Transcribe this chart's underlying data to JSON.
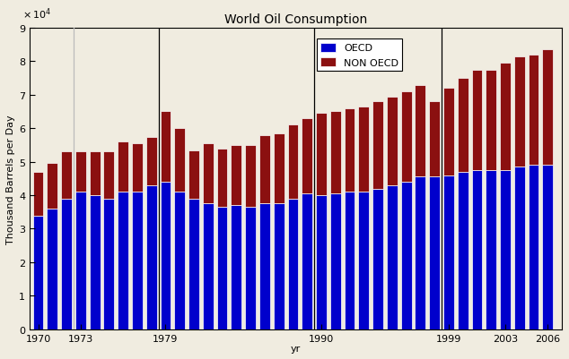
{
  "title": "World Oil Consumption",
  "ylabel": "Thousand Barrels per Day",
  "xlabel": "yr",
  "years": [
    1970,
    1971,
    1972,
    1973,
    1974,
    1975,
    1976,
    1977,
    1978,
    1979,
    1980,
    1981,
    1982,
    1983,
    1984,
    1985,
    1986,
    1987,
    1988,
    1989,
    1990,
    1991,
    1992,
    1993,
    1994,
    1995,
    1996,
    1997,
    1998,
    1999,
    2000,
    2001,
    2002,
    2003,
    2004,
    2005,
    2006
  ],
  "oecd": [
    34000,
    36000,
    39000,
    41000,
    40000,
    39000,
    41000,
    41000,
    43000,
    44000,
    41000,
    39000,
    37500,
    36500,
    37000,
    36500,
    37500,
    37500,
    39000,
    40500,
    40000,
    40500,
    41000,
    41000,
    42000,
    43000,
    44000,
    45500,
    45500,
    46000,
    47000,
    47500,
    47500,
    47500,
    48500,
    49000,
    49000
  ],
  "non_oecd": [
    13000,
    13500,
    14000,
    12000,
    13000,
    14000,
    15000,
    14500,
    14500,
    21000,
    19000,
    14500,
    18000,
    17500,
    18000,
    18500,
    20500,
    21000,
    22000,
    22500,
    24500,
    24500,
    25000,
    25500,
    26000,
    26500,
    27000,
    27500,
    22500,
    26000,
    28000,
    30000,
    30000,
    32000,
    33000,
    33000,
    34500
  ],
  "oecd_color": "#0000CC",
  "non_oecd_color": "#8B1010",
  "bg_color": "#f0ece0",
  "plot_bg_color": "#f0ece0",
  "ylim": [
    0,
    90000
  ],
  "yticks": [
    0,
    10000,
    20000,
    30000,
    40000,
    50000,
    60000,
    70000,
    80000,
    90000
  ],
  "ytick_labels": [
    "0",
    "1",
    "2",
    "3",
    "4",
    "5",
    "6",
    "7",
    "8",
    "9"
  ],
  "xticks": [
    1970,
    1973,
    1979,
    1990,
    1999,
    2003,
    2006
  ],
  "vlines": [
    1973,
    1979,
    1990,
    1999
  ],
  "vline_colors": [
    "#bbbbbb",
    "#000000",
    "#000000",
    "#000000"
  ],
  "bar_width": 0.75,
  "title_fontsize": 10,
  "axis_fontsize": 8,
  "tick_fontsize": 8,
  "legend_labels": [
    "OECD",
    "NON OECD"
  ]
}
